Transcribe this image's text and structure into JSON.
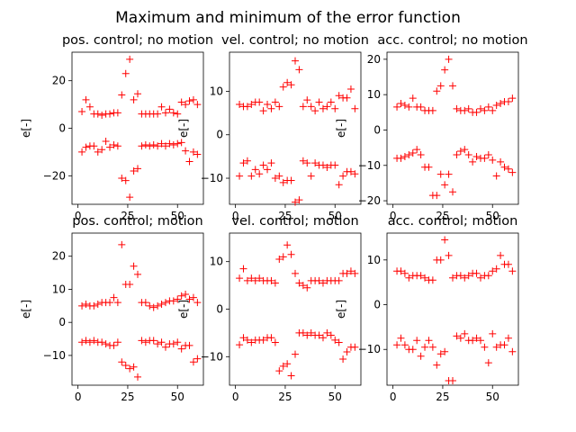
{
  "figure": {
    "title": "Maximum and minimum of the error function"
  },
  "colors": {
    "marker": "#ff0000",
    "axes": "#000000",
    "background": "#ffffff"
  },
  "chart_data": [
    {
      "type": "scatter",
      "title": "pos. control; no motion",
      "xlabel": "",
      "ylabel": "e[-]",
      "xlim": [
        -3,
        63
      ],
      "ylim": [
        -32,
        32
      ],
      "xticks": [
        0,
        25,
        50
      ],
      "yticks": [
        -20,
        0,
        20
      ],
      "series": [
        {
          "marker": "+",
          "x": [
            2,
            4,
            6,
            8,
            10,
            12,
            14,
            16,
            18,
            20,
            22,
            24,
            26,
            28,
            30,
            32,
            34,
            36,
            38,
            40,
            42,
            44,
            46,
            48,
            50,
            52,
            54,
            56,
            58,
            60
          ],
          "y": [
            7,
            12,
            9,
            6,
            6,
            5.5,
            6,
            6,
            6.5,
            6.5,
            14,
            23,
            29,
            12,
            14.5,
            6,
            6,
            6,
            6,
            6,
            9,
            6.5,
            8,
            6.5,
            6,
            11,
            10,
            11.5,
            12,
            10
          ]
        },
        {
          "marker": "+",
          "x": [
            2,
            4,
            6,
            8,
            10,
            12,
            14,
            16,
            18,
            20,
            22,
            24,
            26,
            28,
            30,
            32,
            34,
            36,
            38,
            40,
            42,
            44,
            46,
            48,
            50,
            52,
            54,
            56,
            58,
            60
          ],
          "y": [
            -10,
            -8,
            -7.5,
            -7.5,
            -10,
            -9,
            -5.5,
            -8,
            -7,
            -7.5,
            -21,
            -22,
            -29,
            -18,
            -17,
            -7.5,
            -7,
            -7.5,
            -7,
            -7.5,
            -6.5,
            -7.5,
            -6.5,
            -7,
            -6.5,
            -6,
            -9.5,
            -14,
            -10,
            -11
          ]
        }
      ]
    },
    {
      "type": "scatter",
      "title": "vel. control; no motion",
      "xlabel": "",
      "ylabel": "e[-]",
      "xlim": [
        -3,
        63
      ],
      "ylim": [
        -16,
        19
      ],
      "xticks": [
        0,
        25,
        50
      ],
      "yticks": [
        -10,
        0,
        10
      ],
      "series": [
        {
          "marker": "+",
          "x": [
            2,
            4,
            6,
            8,
            10,
            12,
            14,
            16,
            18,
            20,
            22,
            24,
            26,
            28,
            30,
            32,
            34,
            36,
            38,
            40,
            42,
            44,
            46,
            48,
            50,
            52,
            54,
            56,
            58,
            60
          ],
          "y": [
            7,
            6.5,
            6.5,
            7,
            7.5,
            7.5,
            5.5,
            7,
            6,
            7.5,
            6.5,
            11,
            12,
            11.5,
            17,
            15,
            6.5,
            8,
            6.5,
            5.5,
            7.5,
            6,
            6.5,
            7.5,
            6,
            9,
            8.5,
            8.5,
            10.5,
            6
          ]
        },
        {
          "marker": "+",
          "x": [
            2,
            4,
            6,
            8,
            10,
            12,
            14,
            16,
            18,
            20,
            22,
            24,
            26,
            28,
            30,
            32,
            34,
            36,
            38,
            40,
            42,
            44,
            46,
            48,
            50,
            52,
            54,
            56,
            58,
            60
          ],
          "y": [
            -9.5,
            -6.5,
            -6,
            -9.5,
            -8,
            -9,
            -7,
            -8,
            -6.5,
            -10,
            -9.5,
            -11,
            -10.5,
            -10.5,
            -15.5,
            -15,
            -6,
            -6.5,
            -9.5,
            -6.5,
            -7,
            -7,
            -7.5,
            -7,
            -7,
            -11.5,
            -9.5,
            -8.5,
            -8.5,
            -9
          ]
        }
      ]
    },
    {
      "type": "scatter",
      "title": "acc. control; no motion",
      "xlabel": "",
      "ylabel": "e[-]",
      "xlim": [
        -3,
        63
      ],
      "ylim": [
        -21,
        22
      ],
      "xticks": [
        0,
        25,
        50
      ],
      "yticks": [
        -20,
        -10,
        0,
        10,
        20
      ],
      "series": [
        {
          "marker": "+",
          "x": [
            2,
            4,
            6,
            8,
            10,
            12,
            14,
            16,
            18,
            20,
            22,
            24,
            26,
            28,
            30,
            32,
            34,
            36,
            38,
            40,
            42,
            44,
            46,
            48,
            50,
            52,
            54,
            56,
            58,
            60
          ],
          "y": [
            6.5,
            7.5,
            7,
            6.5,
            9,
            6.5,
            6.5,
            5.5,
            5.5,
            5.5,
            11,
            12.5,
            17,
            20,
            12.5,
            6,
            5.5,
            5.5,
            6,
            5,
            5,
            6,
            5.5,
            6.5,
            5.5,
            7,
            7.5,
            8,
            8,
            9
          ]
        },
        {
          "marker": "+",
          "x": [
            2,
            4,
            6,
            8,
            10,
            12,
            14,
            16,
            18,
            20,
            22,
            24,
            26,
            28,
            30,
            32,
            34,
            36,
            38,
            40,
            42,
            44,
            46,
            48,
            50,
            52,
            54,
            56,
            58,
            60
          ],
          "y": [
            -8,
            -8,
            -7.5,
            -7,
            -6.5,
            -5.5,
            -7,
            -10.5,
            -10.5,
            -18.5,
            -18.5,
            -12.5,
            -15.5,
            -12.5,
            -17.5,
            -7,
            -6,
            -5.5,
            -7,
            -9,
            -7.5,
            -8,
            -8,
            -7,
            -8.5,
            -13,
            -9,
            -10.5,
            -11,
            -12
          ]
        }
      ]
    },
    {
      "type": "scatter",
      "title": "pos. control; motion",
      "xlabel": "",
      "ylabel": "e[-]",
      "xlim": [
        -3,
        63
      ],
      "ylim": [
        -19,
        27
      ],
      "xticks": [
        0,
        25,
        50
      ],
      "yticks": [
        -10,
        0,
        10,
        20
      ],
      "series": [
        {
          "marker": "+",
          "x": [
            2,
            4,
            6,
            8,
            10,
            12,
            14,
            16,
            18,
            20,
            22,
            24,
            26,
            28,
            30,
            32,
            34,
            36,
            38,
            40,
            42,
            44,
            46,
            48,
            50,
            52,
            54,
            56,
            58,
            60
          ],
          "y": [
            5,
            5.5,
            5,
            5,
            5.5,
            6,
            6,
            6,
            7.5,
            6,
            23.5,
            11.5,
            11.5,
            17,
            14.5,
            6,
            6,
            5,
            4.5,
            5,
            5.5,
            6,
            6.5,
            6.5,
            7,
            8,
            8.5,
            7,
            7.5,
            6
          ]
        },
        {
          "marker": "+",
          "x": [
            2,
            4,
            6,
            8,
            10,
            12,
            14,
            16,
            18,
            20,
            22,
            24,
            26,
            28,
            30,
            32,
            34,
            36,
            38,
            40,
            42,
            44,
            46,
            48,
            50,
            52,
            54,
            56,
            58,
            60
          ],
          "y": [
            -6,
            -5.5,
            -6,
            -5.5,
            -6,
            -6,
            -6.5,
            -7,
            -7,
            -6,
            -12,
            -13,
            -14,
            -13.5,
            -16.5,
            -5.5,
            -6,
            -5.5,
            -5.5,
            -6.5,
            -6,
            -7.5,
            -6.5,
            -6.5,
            -6,
            -8,
            -7,
            -7,
            -12,
            -11
          ]
        }
      ]
    },
    {
      "type": "scatter",
      "title": "vel. control; motion",
      "xlabel": "",
      "ylabel": "e[-]",
      "xlim": [
        -3,
        63
      ],
      "ylim": [
        -16,
        16
      ],
      "xticks": [
        0,
        25,
        50
      ],
      "yticks": [
        -10,
        0,
        10
      ],
      "series": [
        {
          "marker": "+",
          "x": [
            2,
            4,
            6,
            8,
            10,
            12,
            14,
            16,
            18,
            20,
            22,
            24,
            26,
            28,
            30,
            32,
            34,
            36,
            38,
            40,
            42,
            44,
            46,
            48,
            50,
            52,
            54,
            56,
            58,
            60
          ],
          "y": [
            6.5,
            8.5,
            6,
            6.5,
            6,
            6.5,
            6,
            6,
            6,
            5.5,
            10.5,
            11,
            13.5,
            11.5,
            7.5,
            5.5,
            5,
            4.5,
            6,
            6,
            6,
            5.5,
            6,
            6,
            6,
            6,
            7.5,
            7.5,
            8,
            7.5
          ]
        },
        {
          "marker": "+",
          "x": [
            2,
            4,
            6,
            8,
            10,
            12,
            14,
            16,
            18,
            20,
            22,
            24,
            26,
            28,
            30,
            32,
            34,
            36,
            38,
            40,
            42,
            44,
            46,
            48,
            50,
            52,
            54,
            56,
            58,
            60
          ],
          "y": [
            -7.5,
            -6,
            -6.5,
            -7,
            -6.5,
            -6.5,
            -6.5,
            -6,
            -6,
            -7,
            -13,
            -12,
            -11.5,
            -14,
            -9.5,
            -5,
            -5,
            -5.5,
            -5,
            -5.5,
            -5.5,
            -6,
            -5,
            -5.5,
            -6.5,
            -7,
            -10.5,
            -9,
            -8,
            -8
          ]
        }
      ]
    },
    {
      "type": "scatter",
      "title": "acc. control; motion",
      "xlabel": "",
      "ylabel": "e[-]",
      "xlim": [
        -3,
        63
      ],
      "ylim": [
        -18,
        16
      ],
      "xticks": [
        0,
        25,
        50
      ],
      "yticks": [
        -10,
        0,
        10
      ],
      "series": [
        {
          "marker": "+",
          "x": [
            2,
            4,
            6,
            8,
            10,
            12,
            14,
            16,
            18,
            20,
            22,
            24,
            26,
            28,
            30,
            32,
            34,
            36,
            38,
            40,
            42,
            44,
            46,
            48,
            50,
            52,
            54,
            56,
            58,
            60
          ],
          "y": [
            7.5,
            7.5,
            7,
            6,
            6.5,
            6.5,
            6.5,
            6,
            5.5,
            5.5,
            10,
            10,
            14.5,
            11,
            6,
            6.5,
            6.5,
            6,
            6.5,
            7,
            7,
            6,
            6.5,
            6.5,
            7.5,
            8,
            11,
            9,
            9,
            7.5
          ]
        },
        {
          "marker": "+",
          "x": [
            2,
            4,
            6,
            8,
            10,
            12,
            14,
            16,
            18,
            20,
            22,
            24,
            26,
            28,
            30,
            32,
            34,
            36,
            38,
            40,
            42,
            44,
            46,
            48,
            50,
            52,
            54,
            56,
            58,
            60
          ],
          "y": [
            -9,
            -7.5,
            -9,
            -10,
            -10,
            -8,
            -11.5,
            -9.5,
            -8,
            -9.5,
            -13.5,
            -11,
            -10.5,
            -17,
            -17,
            -7,
            -7.5,
            -6.5,
            -8,
            -8,
            -7.5,
            -8,
            -9.5,
            -13,
            -6.5,
            -9.5,
            -9,
            -9,
            -7.5,
            -10.5
          ]
        }
      ]
    }
  ]
}
